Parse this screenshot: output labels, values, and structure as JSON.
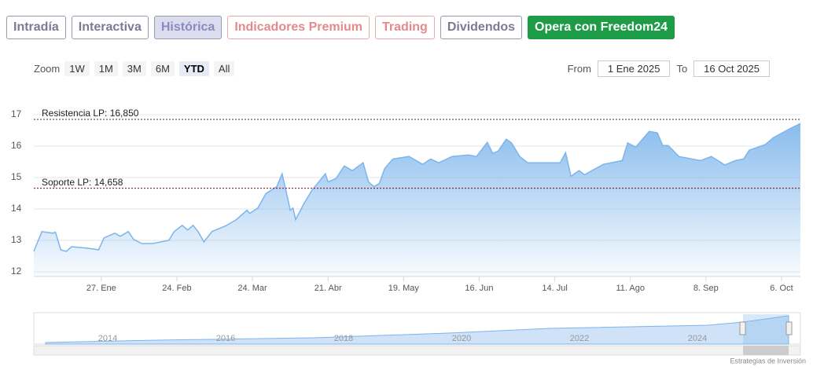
{
  "tabs": [
    "Intradía",
    "Interactiva",
    "Histórica",
    "Indicadores Premium",
    "Trading",
    "Dividendos",
    "Opera con Freedom24"
  ],
  "zoom": {
    "label": "Zoom",
    "buttons": [
      "1W",
      "1M",
      "3M",
      "6M",
      "YTD",
      "All"
    ]
  },
  "range": {
    "from_label": "From",
    "from": "1 Ene 2025",
    "to_label": "To",
    "to": "16 Oct 2025"
  },
  "navigator": {
    "labels": [
      "2014",
      "2016",
      "2018",
      "2020",
      "2022",
      "2024"
    ]
  },
  "credit": "Estrategias de Inversión",
  "chart_data": {
    "type": "area",
    "color": "#7cb5ec",
    "grid": true,
    "x": [
      "2025-01-02",
      "2025-01-05",
      "2025-01-09",
      "2025-01-10",
      "2025-01-12",
      "2025-01-14",
      "2025-01-16",
      "2025-01-22",
      "2025-01-26",
      "2025-01-28",
      "2025-02-01",
      "2025-02-03",
      "2025-02-06",
      "2025-02-08",
      "2025-02-11",
      "2025-02-15",
      "2025-02-21",
      "2025-02-23",
      "2025-02-26",
      "2025-02-28",
      "2025-03-02",
      "2025-03-04",
      "2025-03-06",
      "2025-03-09",
      "2025-03-14",
      "2025-03-18",
      "2025-03-22",
      "2025-03-23",
      "2025-03-26",
      "2025-03-29",
      "2025-04-02",
      "2025-04-04",
      "2025-04-06",
      "2025-04-07",
      "2025-04-08",
      "2025-04-09",
      "2025-04-12",
      "2025-04-15",
      "2025-04-20",
      "2025-04-21",
      "2025-04-24",
      "2025-04-27",
      "2025-04-30",
      "2025-05-04",
      "2025-05-06",
      "2025-05-08",
      "2025-05-10",
      "2025-05-12",
      "2025-05-15",
      "2025-05-21",
      "2025-05-26",
      "2025-05-29",
      "2025-06-01",
      "2025-06-06",
      "2025-06-12",
      "2025-06-15",
      "2025-06-19",
      "2025-06-21",
      "2025-06-23",
      "2025-06-26",
      "2025-06-28",
      "2025-07-01",
      "2025-07-04",
      "2025-07-09",
      "2025-07-16",
      "2025-07-18",
      "2025-07-20",
      "2025-07-23",
      "2025-07-25",
      "2025-08-01",
      "2025-08-08",
      "2025-08-10",
      "2025-08-13",
      "2025-08-18",
      "2025-08-21",
      "2025-08-23",
      "2025-08-25",
      "2025-08-29",
      "2025-09-06",
      "2025-09-10",
      "2025-09-15",
      "2025-09-19",
      "2025-09-22",
      "2025-09-24",
      "2025-09-30",
      "2025-10-03",
      "2025-10-09",
      "2025-10-13"
    ],
    "values": [
      12.65,
      13.28,
      13.23,
      13.26,
      12.7,
      12.65,
      12.8,
      12.75,
      12.7,
      13.08,
      13.23,
      13.13,
      13.28,
      13.03,
      12.9,
      12.9,
      13.0,
      13.28,
      13.48,
      13.33,
      13.48,
      13.26,
      12.95,
      13.28,
      13.46,
      13.66,
      13.96,
      13.86,
      14.03,
      14.49,
      14.71,
      15.12,
      14.36,
      13.96,
      14.03,
      13.66,
      14.16,
      14.59,
      15.12,
      14.86,
      14.97,
      15.37,
      15.22,
      15.47,
      14.86,
      14.71,
      14.81,
      15.29,
      15.59,
      15.67,
      15.42,
      15.59,
      15.47,
      15.67,
      15.72,
      15.67,
      16.12,
      15.77,
      15.84,
      16.22,
      16.1,
      15.67,
      15.47,
      15.47,
      15.47,
      15.79,
      15.04,
      15.22,
      15.09,
      15.42,
      15.54,
      16.1,
      15.97,
      16.47,
      16.42,
      16.02,
      16.02,
      15.67,
      15.54,
      15.67,
      15.4,
      15.54,
      15.59,
      15.87,
      16.05,
      16.27,
      16.55,
      16.72
    ],
    "xlim": [
      "2025-01-02",
      "2025-10-13"
    ],
    "xticks": [
      {
        "value": "2025-01-27",
        "label": "27. Ene"
      },
      {
        "value": "2025-02-24",
        "label": "24. Feb"
      },
      {
        "value": "2025-03-24",
        "label": "24. Mar"
      },
      {
        "value": "2025-04-21",
        "label": "21. Abr"
      },
      {
        "value": "2025-05-19",
        "label": "19. May"
      },
      {
        "value": "2025-06-16",
        "label": "16. Jun"
      },
      {
        "value": "2025-07-14",
        "label": "14. Jul"
      },
      {
        "value": "2025-08-11",
        "label": "11. Ago"
      },
      {
        "value": "2025-09-08",
        "label": "8. Sep"
      },
      {
        "value": "2025-10-06",
        "label": "6. Oct"
      }
    ],
    "ylim": [
      11.85,
      17.15
    ],
    "yticks": [
      12,
      13,
      14,
      15,
      16,
      17
    ],
    "annotations": [
      {
        "label": "Resistencia LP: 16,850",
        "value": 16.85,
        "color": "#333333"
      },
      {
        "label": "Soporte LP: 14,658",
        "value": 14.658,
        "color": "#8b0000"
      }
    ]
  }
}
